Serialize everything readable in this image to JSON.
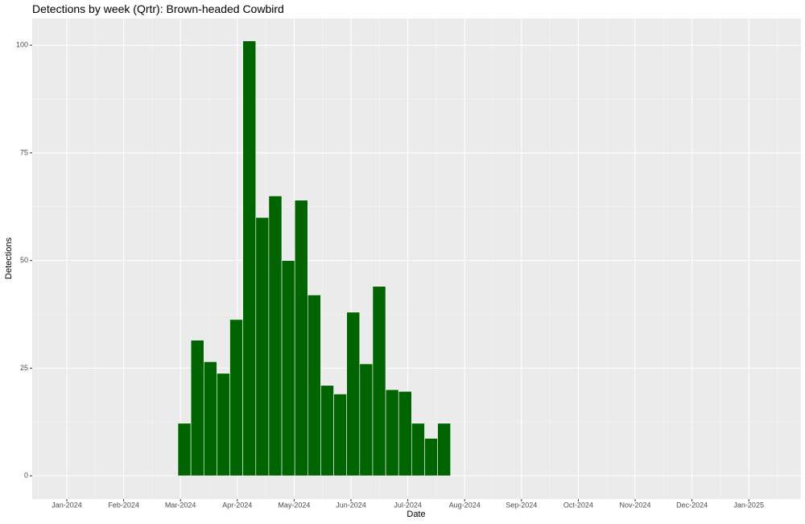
{
  "chart_data": {
    "type": "bar",
    "title": "Detections by week (Qrtr): Brown-headed Cowbird",
    "x_label": "Date",
    "y_label": "Detections",
    "categories": [
      null,
      null,
      null,
      null,
      null,
      null,
      null,
      null,
      null,
      null,
      null,
      null,
      null,
      null,
      null,
      null,
      null,
      null,
      null,
      null,
      null
    ],
    "values": [
      12.2,
      31.5,
      26.5,
      23.8,
      36.3,
      101,
      60,
      65,
      50,
      64,
      42,
      21,
      19,
      38,
      26,
      44,
      20,
      19.6,
      12.2,
      8.7,
      12.2
    ],
    "color": "#006400",
    "x_tick_labels": [
      "Jan-2024",
      "Feb-2024",
      "Mar-2024",
      "Apr-2024",
      "May-2024",
      "Jun-2024",
      "Jul-2024",
      "Aug-2024",
      "Sep-2024",
      "Oct-2024",
      "Nov-2024",
      "Dec-2024",
      "Jan-2025"
    ],
    "ylim": [
      -5.4,
      106.2
    ],
    "yticks": [
      0,
      25,
      50,
      75,
      100
    ],
    "grid": true
  }
}
